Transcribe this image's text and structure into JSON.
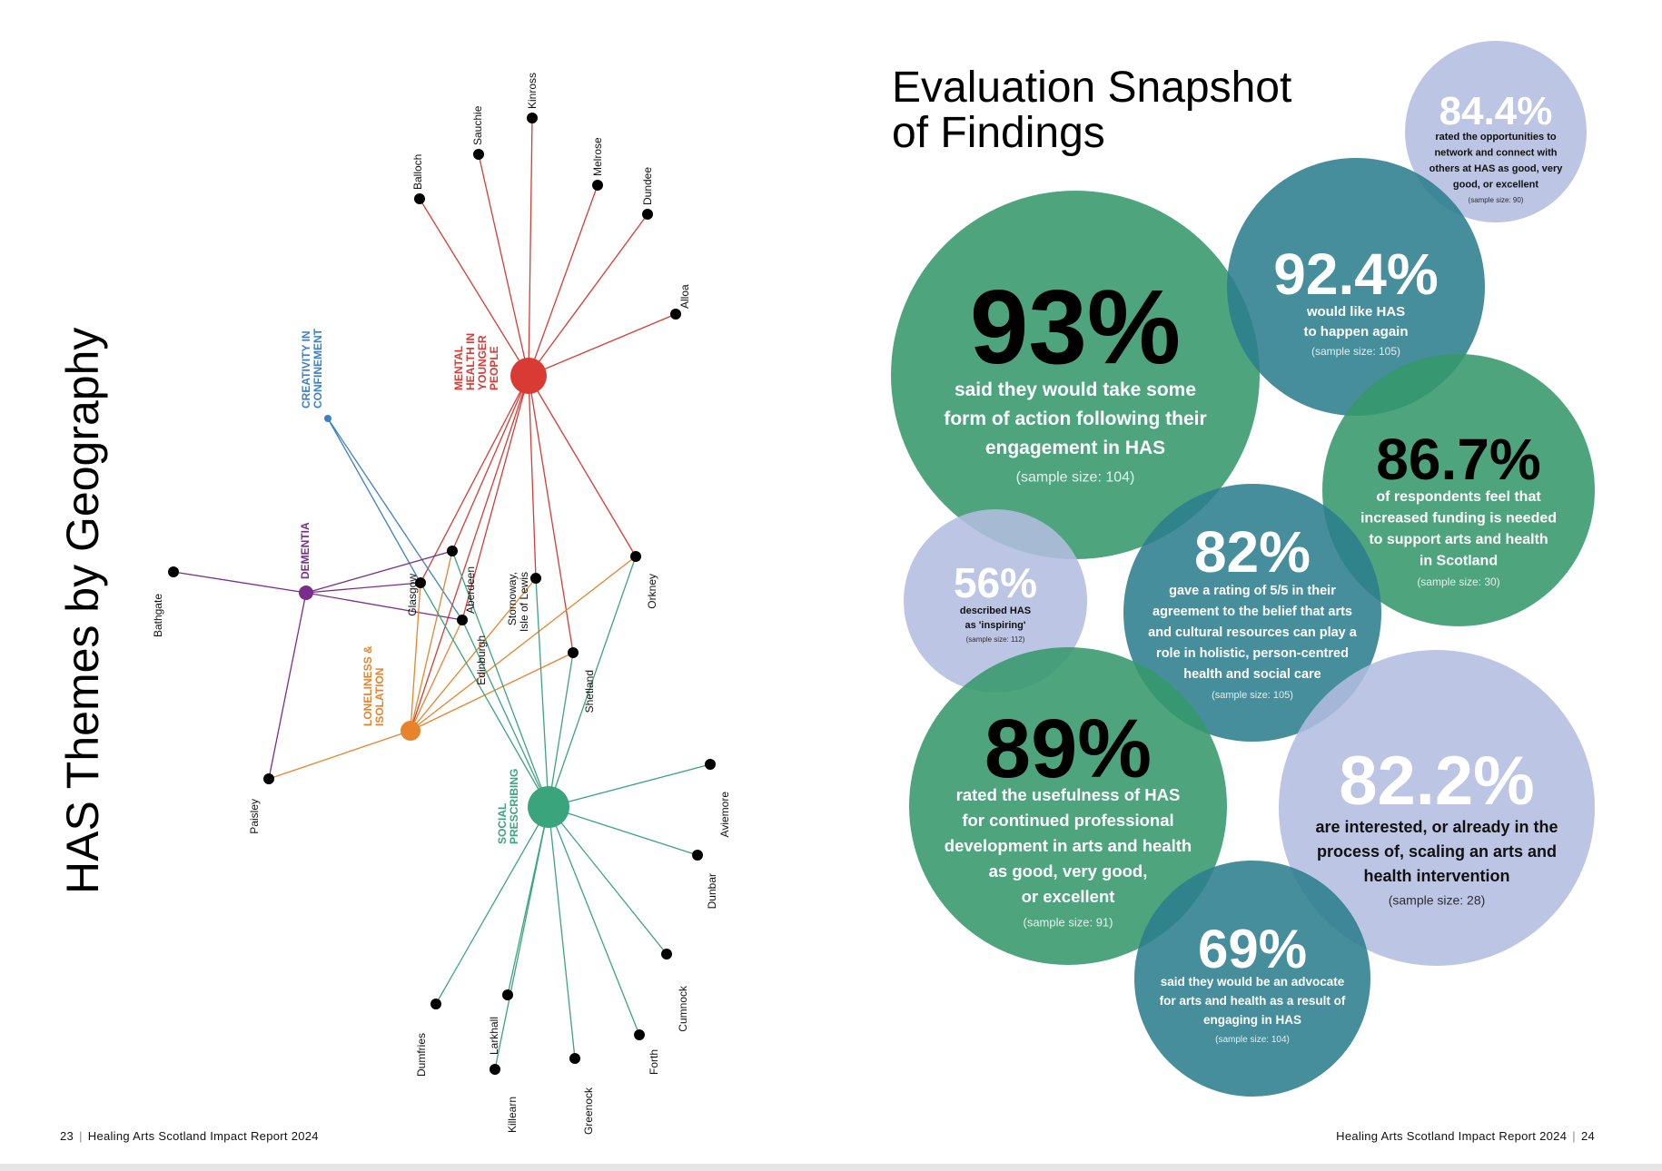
{
  "left_page": {
    "title": "HAS Themes by Geography",
    "themes": [
      {
        "id": "mental",
        "label_lines": [
          "MENTAL",
          "HEALTH IN",
          "YOUNGER",
          "PEOPLE"
        ],
        "color": "#d93a33",
        "links": [
          "balloch",
          "sauchie",
          "kinross",
          "melrose",
          "dundee",
          "alloa",
          "orkney",
          "shetland",
          "edinburgh",
          "stornoway",
          "aberdeen",
          "glasgow",
          "loneliness"
        ]
      },
      {
        "id": "creativity",
        "label_lines": [
          "CREATIVITY IN",
          "CONFINEMENT"
        ],
        "color": "#3b7fc4",
        "links": [
          "glasgow",
          "edinburgh"
        ]
      },
      {
        "id": "dementia",
        "label_lines": [
          "DEMENTIA"
        ],
        "color": "#7b2d8e",
        "links": [
          "bathgate",
          "paisley",
          "glasgow",
          "aberdeen",
          "edinburgh"
        ]
      },
      {
        "id": "loneliness",
        "label_lines": [
          "LONELINESS &",
          "ISOLATION"
        ],
        "color": "#e8832b",
        "links": [
          "paisley",
          "glasgow",
          "aberdeen",
          "edinburgh",
          "stornoway",
          "orkney",
          "shetland"
        ]
      },
      {
        "id": "social",
        "label_lines": [
          "SOCIAL",
          "PRESCRIBING"
        ],
        "color": "#3aa57d",
        "links": [
          "aviemore",
          "dunbar",
          "cumnock",
          "forth",
          "greenock",
          "killearn",
          "larkhall",
          "dumfries",
          "glasgow",
          "aberdeen",
          "edinburgh",
          "stornoway",
          "orkney",
          "shetland"
        ]
      }
    ],
    "places": [
      {
        "id": "balloch",
        "label": "Balloch"
      },
      {
        "id": "sauchie",
        "label": "Sauchie"
      },
      {
        "id": "kinross",
        "label": "Kinross"
      },
      {
        "id": "melrose",
        "label": "Melrose"
      },
      {
        "id": "dundee",
        "label": "Dundee"
      },
      {
        "id": "alloa",
        "label": "Alloa"
      },
      {
        "id": "orkney",
        "label": "Orkney"
      },
      {
        "id": "stornoway",
        "label": "Stornoway, Isle of Lewis"
      },
      {
        "id": "aberdeen",
        "label": "Aberdeen"
      },
      {
        "id": "glasgow",
        "label": "Glasgow"
      },
      {
        "id": "edinburgh",
        "label": "Edinburgh"
      },
      {
        "id": "shetland",
        "label": "Shetland"
      },
      {
        "id": "bathgate",
        "label": "Bathgate"
      },
      {
        "id": "paisley",
        "label": "Paisley"
      },
      {
        "id": "aviemore",
        "label": "Aviemore"
      },
      {
        "id": "dunbar",
        "label": "Dunbar"
      },
      {
        "id": "cumnock",
        "label": "Cumnock"
      },
      {
        "id": "forth",
        "label": "Forth"
      },
      {
        "id": "greenock",
        "label": "Greenock"
      },
      {
        "id": "killearn",
        "label": "Killearn"
      },
      {
        "id": "larkhall",
        "label": "Larkhall"
      },
      {
        "id": "dumfries",
        "label": "Dumfries"
      }
    ],
    "footer": {
      "page": "23",
      "text": "Healing Arts Scotland Impact Report 2024"
    }
  },
  "right_page": {
    "title_lines": [
      "Evaluation Snapshot",
      "of Findings"
    ],
    "stats": [
      {
        "id": "stat-93",
        "value": "93%",
        "desc": [
          "said they would take some",
          "form of action following their",
          "engagement in HAS"
        ],
        "sample": "(sample size: 104)",
        "color": "#35996b"
      },
      {
        "id": "stat-84-4",
        "value": "84.4%",
        "desc": [
          "rated the opportunities to",
          "network and connect with",
          "others at HAS as good, very",
          "good, or excellent"
        ],
        "sample": "(sample size: 90)",
        "color": "#b3bde0"
      },
      {
        "id": "stat-92-4",
        "value": "92.4%",
        "desc": [
          "would like HAS",
          "to happen again"
        ],
        "sample": "(sample size: 105)",
        "color": "#2c7e8d"
      },
      {
        "id": "stat-86-7",
        "value": "86.7%",
        "desc": [
          "of respondents feel that",
          "increased funding is needed",
          "to support arts and health",
          "in Scotland"
        ],
        "sample": "(sample size: 30)",
        "color": "#35996b"
      },
      {
        "id": "stat-56",
        "value": "56%",
        "desc": [
          "described HAS",
          "as 'inspiring'"
        ],
        "sample": "(sample size: 112)",
        "color": "#b3bde0"
      },
      {
        "id": "stat-82",
        "value": "82%",
        "desc": [
          "gave a rating of 5/5 in their",
          "agreement to the belief that arts",
          "and cultural resources can play a",
          "role in holistic, person-centred",
          "health and social care"
        ],
        "sample": "(sample size: 105)",
        "color": "#2c7e8d"
      },
      {
        "id": "stat-89",
        "value": "89%",
        "desc": [
          "rated the usefulness of HAS",
          "for continued professional",
          "development in arts and health",
          "as good, very good,",
          "or excellent"
        ],
        "sample": "(sample size: 91)",
        "color": "#35996b"
      },
      {
        "id": "stat-82-2",
        "value": "82.2%",
        "desc": [
          "are interested, or already in the",
          "process of, scaling an arts and",
          "health intervention"
        ],
        "sample": "(sample size: 28)",
        "color": "#b3bde0"
      },
      {
        "id": "stat-69",
        "value": "69%",
        "desc": [
          "said they would be an advocate",
          "for arts and health as a result of",
          "engaging in HAS"
        ],
        "sample": "(sample size: 104)",
        "color": "#2c7e8d"
      }
    ],
    "footer": {
      "page": "24",
      "text": "Healing Arts Scotland Impact Report 2024"
    }
  }
}
